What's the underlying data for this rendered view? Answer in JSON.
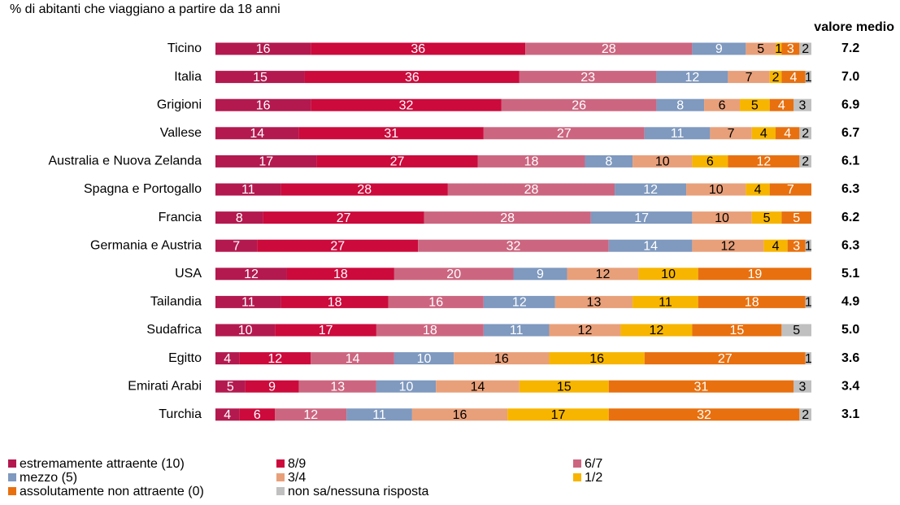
{
  "chart_data": {
    "type": "stacked-bar-horizontal",
    "title": "% di abitanti che viaggiano a partire da 18 anni",
    "side_title": "valore medio",
    "xlim": [
      0,
      100
    ],
    "categories": [
      "Ticino",
      "Italia",
      "Grigioni",
      "Vallese",
      "Australia e Nuova Zelanda",
      "Spagna e Portogallo",
      "Francia",
      "Germania e Austria",
      "USA",
      "Tailandia",
      "Sudafrica",
      "Egitto",
      "Emirati Arabi",
      "Turchia"
    ],
    "side_values": [
      "7.2",
      "7.0",
      "6.9",
      "6.7",
      "6.1",
      "6.3",
      "6.2",
      "6.3",
      "5.1",
      "4.9",
      "5.0",
      "3.6",
      "3.4",
      "3.1"
    ],
    "series": [
      {
        "name": "estremamente attraente (10)",
        "color": "#b3194f",
        "values": [
          16,
          15,
          16,
          14,
          17,
          11,
          8,
          7,
          12,
          11,
          10,
          4,
          5,
          4
        ]
      },
      {
        "name": "8/9",
        "color": "#cc0a3c",
        "values": [
          36,
          36,
          32,
          31,
          27,
          28,
          27,
          27,
          18,
          18,
          17,
          12,
          9,
          6
        ]
      },
      {
        "name": "6/7",
        "color": "#cc6680",
        "values": [
          28,
          23,
          26,
          27,
          18,
          28,
          28,
          32,
          20,
          16,
          18,
          14,
          13,
          12
        ]
      },
      {
        "name": "mezzo (5)",
        "color": "#7f99bf",
        "values": [
          9,
          12,
          8,
          11,
          8,
          12,
          17,
          14,
          9,
          12,
          11,
          10,
          10,
          11
        ]
      },
      {
        "name": "3/4",
        "color": "#e8a07a",
        "values": [
          5,
          7,
          6,
          7,
          10,
          10,
          10,
          12,
          12,
          13,
          12,
          16,
          14,
          16
        ]
      },
      {
        "name": "1/2",
        "color": "#f7b500",
        "values": [
          1,
          2,
          5,
          4,
          6,
          4,
          5,
          4,
          10,
          11,
          12,
          16,
          15,
          17
        ]
      },
      {
        "name": "assolutamente non attraente (0)",
        "color": "#e8700f",
        "values": [
          3,
          4,
          4,
          4,
          12,
          7,
          5,
          3,
          19,
          18,
          15,
          27,
          31,
          32
        ]
      },
      {
        "name": "non sa/nessuna risposta",
        "color": "#c0c0c0",
        "values": [
          2,
          1,
          3,
          2,
          2,
          null,
          null,
          1,
          null,
          1,
          5,
          1,
          3,
          2
        ]
      }
    ]
  }
}
